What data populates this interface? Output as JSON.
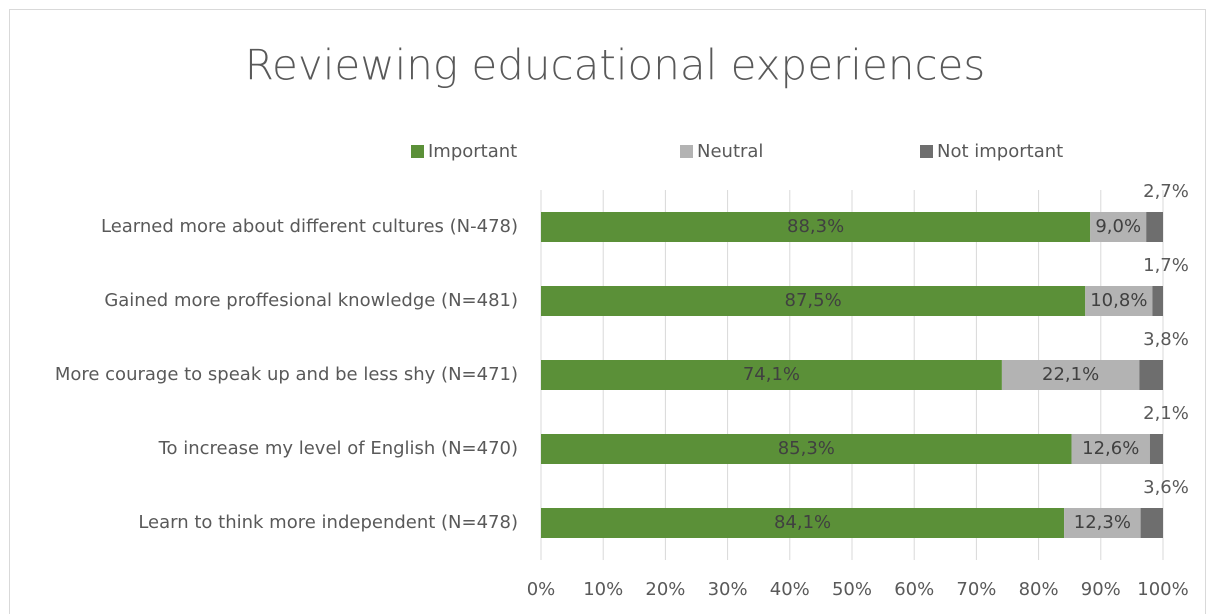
{
  "chart_data": {
    "type": "stacked-bar-horizontal",
    "title": "Reviewing educational experiences",
    "categories": [
      "Learned more about different cultures (N-478)",
      "Gained more proffesional knowledge (N=481)",
      "More courage to speak up and be less shy (N=471)",
      "To increase my level of English (N=470)",
      "Learn to think more independent (N=478)"
    ],
    "series": [
      {
        "name": "Important",
        "color": "#5b9038",
        "values": [
          88.3,
          87.5,
          74.1,
          85.3,
          84.1
        ],
        "value_labels": [
          "88,3%",
          "87,5%",
          "74,1%",
          "85,3%",
          "84,1%"
        ]
      },
      {
        "name": "Neutral",
        "color": "#b3b3b3",
        "values": [
          9.0,
          10.8,
          22.1,
          12.6,
          12.3
        ],
        "value_labels": [
          "9,0%",
          "10,8%",
          "22,1%",
          "12,6%",
          "12,3%"
        ]
      },
      {
        "name": "Not important",
        "color": "#6e6e6e",
        "values": [
          2.7,
          1.7,
          3.8,
          2.1,
          3.6
        ],
        "value_labels": [
          "2,7%",
          "1,7%",
          "3,8%",
          "2,1%",
          "3,6%"
        ]
      }
    ],
    "xlim": [
      0,
      100
    ],
    "xticks": [
      {
        "value": 0,
        "label": "0%"
      },
      {
        "value": 10,
        "label": "10%"
      },
      {
        "value": 20,
        "label": "20%"
      },
      {
        "value": 30,
        "label": "30%"
      },
      {
        "value": 40,
        "label": "40%"
      },
      {
        "value": 50,
        "label": "50%"
      },
      {
        "value": 60,
        "label": "60%"
      },
      {
        "value": 70,
        "label": "70%"
      },
      {
        "value": 80,
        "label": "80%"
      },
      {
        "value": 90,
        "label": "90%"
      },
      {
        "value": 100,
        "label": "100%"
      }
    ],
    "grid": true,
    "legend": "top"
  }
}
